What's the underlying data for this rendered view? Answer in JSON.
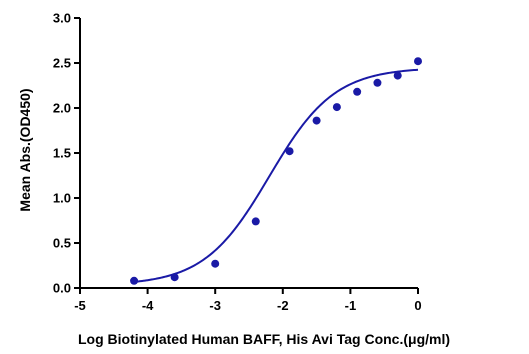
{
  "chart_data": {
    "type": "scatter",
    "title": "",
    "xlabel": "Log Biotinylated Human BAFF, His Avi Tag Conc.(μg/ml)",
    "ylabel": "Mean Abs.(OD450)",
    "xlim": [
      -5,
      0
    ],
    "ylim": [
      0.0,
      3.0
    ],
    "x_ticks": [
      "-5",
      "-4",
      "-3",
      "-2",
      "-1",
      "0"
    ],
    "y_ticks": [
      "0.0",
      "0.5",
      "1.0",
      "1.5",
      "2.0",
      "2.5",
      "3.0"
    ],
    "grid": false,
    "series": [
      {
        "points": [
          {
            "x": -4.2,
            "y": 0.08
          },
          {
            "x": -3.6,
            "y": 0.12
          },
          {
            "x": -3.0,
            "y": 0.27
          },
          {
            "x": -2.4,
            "y": 0.74
          },
          {
            "x": -1.9,
            "y": 1.52
          },
          {
            "x": -1.5,
            "y": 1.86
          },
          {
            "x": -1.2,
            "y": 2.01
          },
          {
            "x": -0.9,
            "y": 2.18
          },
          {
            "x": -0.6,
            "y": 2.28
          },
          {
            "x": -0.3,
            "y": 2.36
          },
          {
            "x": 0.0,
            "y": 2.52
          }
        ]
      }
    ],
    "colors": {
      "series": "#1a1aa6",
      "axis": "#000000"
    }
  }
}
